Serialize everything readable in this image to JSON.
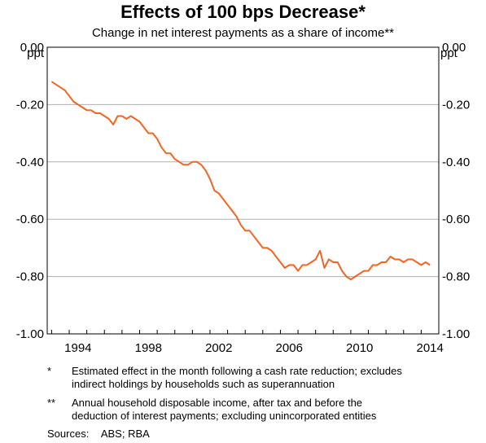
{
  "chart_data": {
    "type": "line",
    "title": "Effects of 100 bps Decrease*",
    "subtitle": "Change in net interest payments as a share of income**",
    "ylabel_left": "ppt",
    "ylabel_right": "ppt",
    "ylim": [
      -1.0,
      0.0
    ],
    "yticks": [
      0.0,
      -0.2,
      -0.4,
      -0.6,
      -0.8,
      -1.0
    ],
    "ytick_labels": [
      "0.00",
      "-0.20",
      "-0.40",
      "-0.60",
      "-0.80",
      "-1.00"
    ],
    "xlim": [
      1992.75,
      2015.0
    ],
    "xticks": [
      1994,
      1998,
      2002,
      2006,
      2010,
      2014
    ],
    "xtick_labels": [
      "1994",
      "1998",
      "2002",
      "2006",
      "2010",
      "2014"
    ],
    "grid": true,
    "line_color": "#f26522",
    "series": [
      {
        "x": [
          1993.0,
          1993.25,
          1993.5,
          1993.75,
          1994.0,
          1994.25,
          1994.5,
          1994.75,
          1995.0,
          1995.25,
          1995.5,
          1995.75,
          1996.0,
          1996.25,
          1996.5,
          1996.75,
          1997.0,
          1997.25,
          1997.5,
          1997.75,
          1998.0,
          1998.25,
          1998.5,
          1998.75,
          1999.0,
          1999.25,
          1999.5,
          1999.75,
          2000.0,
          2000.25,
          2000.5,
          2000.75,
          2001.0,
          2001.25,
          2001.5,
          2001.75,
          2002.0,
          2002.25,
          2002.5,
          2002.75,
          2003.0,
          2003.25,
          2003.5,
          2003.75,
          2004.0,
          2004.25,
          2004.5,
          2004.75,
          2005.0,
          2005.25,
          2005.5,
          2005.75,
          2006.0,
          2006.25,
          2006.5,
          2006.75,
          2007.0,
          2007.25,
          2007.5,
          2007.75,
          2008.0,
          2008.25,
          2008.5,
          2008.75,
          2009.0,
          2009.25,
          2009.5,
          2009.75,
          2010.0,
          2010.25,
          2010.5,
          2010.75,
          2011.0,
          2011.25,
          2011.5,
          2011.75,
          2012.0,
          2012.25,
          2012.5,
          2012.75,
          2013.0,
          2013.25,
          2013.5,
          2013.75,
          2014.0,
          2014.25,
          2014.5
        ],
        "y": [
          -0.12,
          -0.13,
          -0.14,
          -0.15,
          -0.17,
          -0.19,
          -0.2,
          -0.21,
          -0.22,
          -0.22,
          -0.23,
          -0.23,
          -0.24,
          -0.25,
          -0.27,
          -0.24,
          -0.24,
          -0.25,
          -0.24,
          -0.25,
          -0.26,
          -0.28,
          -0.3,
          -0.3,
          -0.32,
          -0.35,
          -0.37,
          -0.37,
          -0.39,
          -0.4,
          -0.41,
          -0.41,
          -0.4,
          -0.4,
          -0.41,
          -0.43,
          -0.46,
          -0.5,
          -0.51,
          -0.53,
          -0.55,
          -0.57,
          -0.59,
          -0.62,
          -0.64,
          -0.64,
          -0.66,
          -0.68,
          -0.7,
          -0.7,
          -0.71,
          -0.73,
          -0.75,
          -0.77,
          -0.76,
          -0.76,
          -0.78,
          -0.76,
          -0.76,
          -0.75,
          -0.74,
          -0.71,
          -0.77,
          -0.74,
          -0.75,
          -0.75,
          -0.78,
          -0.8,
          -0.81,
          -0.8,
          -0.79,
          -0.78,
          -0.78,
          -0.76,
          -0.76,
          -0.75,
          -0.75,
          -0.73,
          -0.74,
          -0.74,
          -0.75,
          -0.74,
          -0.74,
          -0.75,
          -0.76,
          -0.75,
          -0.76
        ]
      }
    ]
  },
  "notes": [
    {
      "mark": "*",
      "text_lines": [
        "Estimated effect in the month following a cash rate reduction; excludes",
        "indirect holdings by households such as superannuation"
      ]
    },
    {
      "mark": "**",
      "text_lines": [
        "Annual household disposable income, after tax and before the",
        "deduction of interest payments; excluding unincorporated entities"
      ]
    }
  ],
  "sources": {
    "label": "Sources:",
    "text": "ABS; RBA"
  }
}
